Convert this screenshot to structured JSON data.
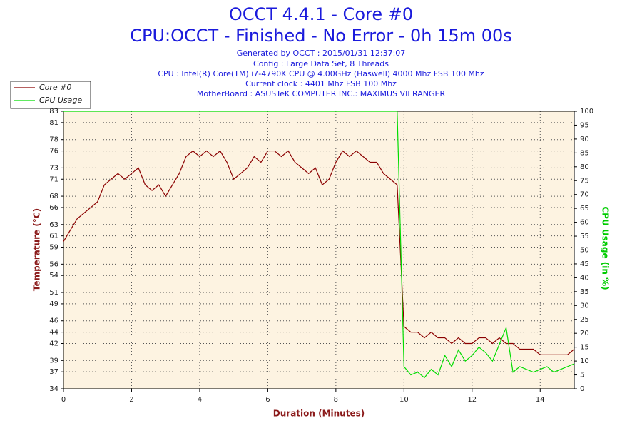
{
  "chart_data": {
    "type": "line",
    "title": "OCCT 4.4.1 - Core #0",
    "subtitle": "CPU:OCCT - Finished - No Error - 0h 15m 00s",
    "info": [
      "Generated by OCCT : 2015/01/31 12:37:07",
      "Config : Large Data Set, 8 Threads",
      "CPU : Intel(R) Core(TM) i7-4790K CPU @ 4.00GHz (Haswell) 4000 Mhz FSB 100 Mhz",
      "Current clock : 4401 Mhz FSB 100 Mhz",
      "MotherBoard : ASUSTeK COMPUTER INC.: MAXIMUS VII RANGER"
    ],
    "x_label": "Duration (Minutes)",
    "y_label": "Temperature (°C)",
    "y2_label": "CPU Usage (in %)",
    "xlim": [
      0,
      15
    ],
    "xticks": [
      0,
      2,
      4,
      6,
      8,
      10,
      12,
      14
    ],
    "ylim": [
      34,
      83
    ],
    "yticks": [
      34,
      37,
      39,
      42,
      44,
      46,
      49,
      51,
      54,
      56,
      59,
      61,
      63,
      66,
      68,
      71,
      73,
      76,
      78,
      81,
      83
    ],
    "y2lim": [
      0,
      100
    ],
    "y2ticks": [
      0,
      5,
      10,
      15,
      20,
      25,
      30,
      35,
      40,
      45,
      50,
      55,
      60,
      65,
      70,
      75,
      80,
      85,
      90,
      95,
      100
    ],
    "grid": true,
    "legend": "top-left",
    "x": [
      0,
      0.2,
      0.4,
      0.6,
      0.8,
      1.0,
      1.2,
      1.4,
      1.6,
      1.8,
      2.0,
      2.2,
      2.4,
      2.6,
      2.8,
      3.0,
      3.2,
      3.4,
      3.6,
      3.8,
      4.0,
      4.2,
      4.4,
      4.6,
      4.8,
      5.0,
      5.2,
      5.4,
      5.6,
      5.8,
      6.0,
      6.2,
      6.4,
      6.6,
      6.8,
      7.0,
      7.2,
      7.4,
      7.6,
      7.8,
      8.0,
      8.2,
      8.4,
      8.6,
      8.8,
      9.0,
      9.2,
      9.4,
      9.6,
      9.8,
      10.0,
      10.2,
      10.4,
      10.6,
      10.8,
      11.0,
      11.2,
      11.4,
      11.6,
      11.8,
      12.0,
      12.2,
      12.4,
      12.6,
      12.8,
      13.0,
      13.2,
      13.4,
      13.6,
      13.8,
      14.0,
      14.2,
      14.4,
      14.6,
      14.8,
      15.0
    ],
    "series": [
      {
        "name": "Core #0",
        "color": "#8b0000",
        "axis": "y",
        "values": [
          60,
          62,
          64,
          65,
          66,
          67,
          70,
          71,
          72,
          71,
          72,
          73,
          70,
          69,
          70,
          68,
          70,
          72,
          75,
          76,
          75,
          76,
          75,
          76,
          74,
          71,
          72,
          73,
          75,
          74,
          76,
          76,
          75,
          76,
          74,
          73,
          72,
          73,
          70,
          71,
          74,
          76,
          75,
          76,
          75,
          74,
          74,
          72,
          71,
          70,
          45,
          44,
          44,
          43,
          44,
          43,
          43,
          42,
          43,
          42,
          42,
          43,
          43,
          42,
          43,
          42,
          42,
          41,
          41,
          41,
          40,
          40,
          40,
          40,
          40,
          41
        ]
      },
      {
        "name": "CPU Usage",
        "color": "#00dd00",
        "axis": "y2",
        "values": [
          100,
          100,
          100,
          100,
          100,
          100,
          100,
          100,
          100,
          100,
          100,
          100,
          100,
          100,
          100,
          100,
          100,
          100,
          100,
          100,
          100,
          100,
          100,
          100,
          100,
          100,
          100,
          100,
          100,
          100,
          100,
          100,
          100,
          100,
          100,
          100,
          100,
          100,
          100,
          100,
          100,
          100,
          100,
          100,
          100,
          100,
          100,
          100,
          100,
          100,
          8,
          5,
          6,
          4,
          7,
          5,
          12,
          8,
          14,
          10,
          12,
          15,
          13,
          10,
          16,
          22,
          6,
          8,
          7,
          6,
          7,
          8,
          6,
          7,
          8,
          9
        ]
      }
    ]
  }
}
